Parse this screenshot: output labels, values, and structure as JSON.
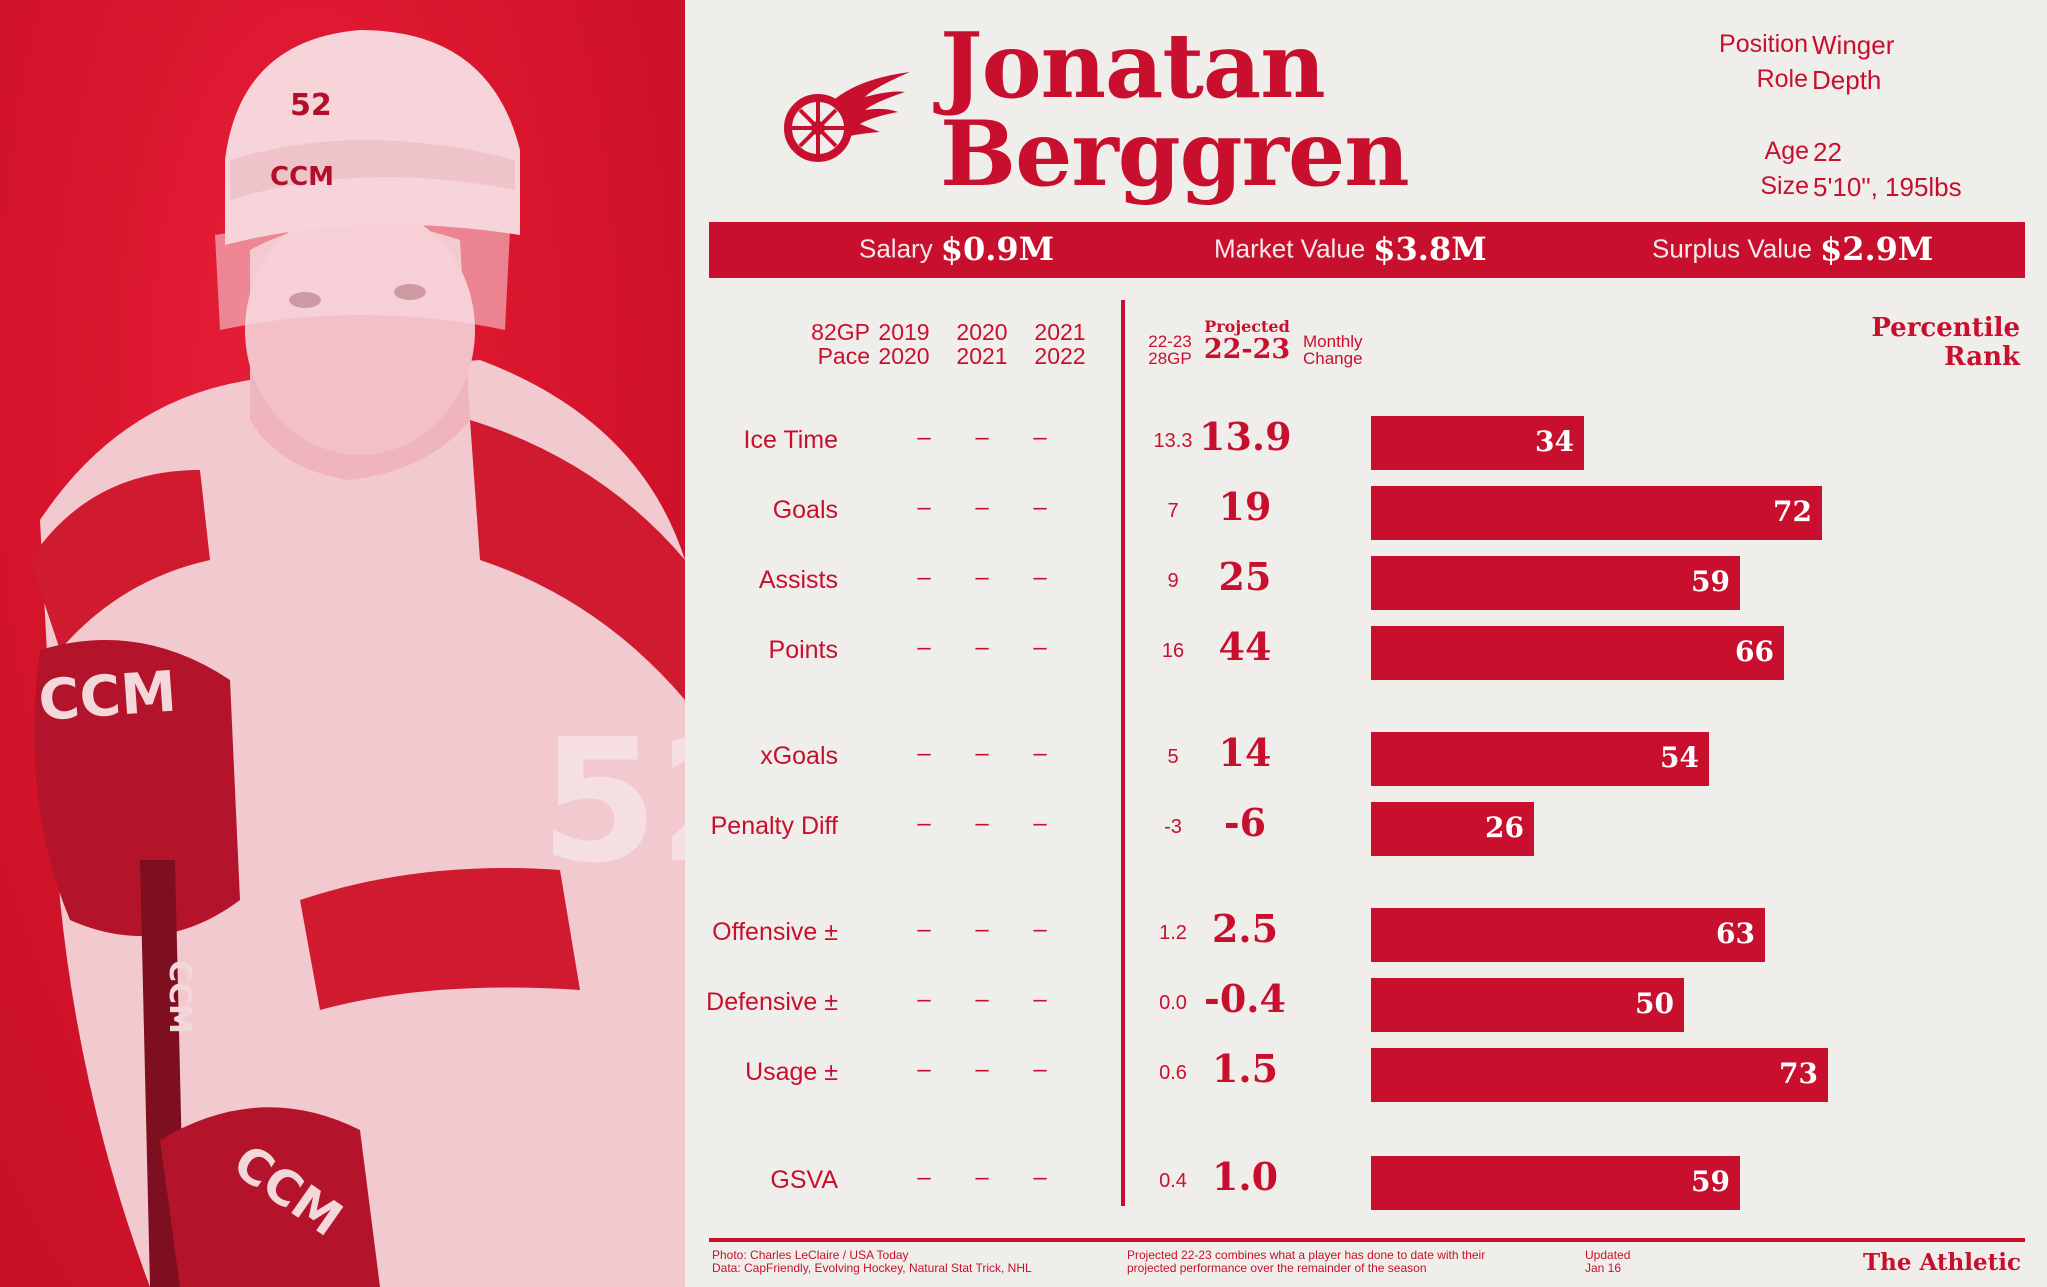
{
  "player": {
    "first_name": "Jonatan",
    "last_name": "Berggren",
    "position_label": "Position",
    "position": "Winger",
    "role_label": "Role",
    "role": "Depth",
    "age_label": "Age",
    "age": "22",
    "size_label": "Size",
    "size": "5'10\", 195lbs",
    "jersey_number": "52"
  },
  "contract": {
    "salary_label": "Salary",
    "salary": "$0.9M",
    "market_label": "Market Value",
    "market": "$3.8M",
    "surplus_label": "Surplus Value",
    "surplus": "$2.9M"
  },
  "headers": {
    "pace_1": "82GP",
    "pace_2": "Pace",
    "s1_a": "2019",
    "s1_b": "2020",
    "s2_a": "2020",
    "s2_b": "2021",
    "s3_a": "2021",
    "s3_b": "2022",
    "gp_a": "22-23",
    "gp_b": "28GP",
    "proj_a": "Projected",
    "proj_b": "22-23",
    "monthly_a": "Monthly",
    "monthly_b": "Change",
    "pct_a": "Percentile",
    "pct_b": "Rank"
  },
  "rows": [
    {
      "label": "Ice Time",
      "s1": "–",
      "s2": "–",
      "s3": "–",
      "current": "13.3",
      "projected": "13.9",
      "percentile": 34
    },
    {
      "label": "Goals",
      "s1": "–",
      "s2": "–",
      "s3": "–",
      "current": "7",
      "projected": "19",
      "percentile": 72
    },
    {
      "label": "Assists",
      "s1": "–",
      "s2": "–",
      "s3": "–",
      "current": "9",
      "projected": "25",
      "percentile": 59
    },
    {
      "label": "Points",
      "s1": "–",
      "s2": "–",
      "s3": "–",
      "current": "16",
      "projected": "44",
      "percentile": 66
    },
    {
      "label": "xGoals",
      "s1": "–",
      "s2": "–",
      "s3": "–",
      "current": "5",
      "projected": "14",
      "percentile": 54
    },
    {
      "label": "Penalty Diff",
      "s1": "–",
      "s2": "–",
      "s3": "–",
      "current": "-3",
      "projected": "-6",
      "percentile": 26
    },
    {
      "label": "Offensive ±",
      "s1": "–",
      "s2": "–",
      "s3": "–",
      "current": "1.2",
      "projected": "2.5",
      "percentile": 63
    },
    {
      "label": "Defensive ±",
      "s1": "–",
      "s2": "–",
      "s3": "–",
      "current": "0.0",
      "projected": "-0.4",
      "percentile": 50
    },
    {
      "label": "Usage ±",
      "s1": "–",
      "s2": "–",
      "s3": "–",
      "current": "0.6",
      "projected": "1.5",
      "percentile": 73
    },
    {
      "label": "GSVA",
      "s1": "–",
      "s2": "–",
      "s3": "–",
      "current": "0.4",
      "projected": "1.0",
      "percentile": 59
    }
  ],
  "footer": {
    "photo_credit": "Photo: Charles LeClaire / USA Today",
    "data_credit": "Data: CapFriendly, Evolving Hockey, Natural Stat Trick, NHL",
    "note_1": "Projected 22-23 combines what a player has done to date with their",
    "note_2": "projected performance over the remainder of the season",
    "updated_label": "Updated",
    "updated_date": "Jan 16",
    "brand": "The Athletic"
  },
  "colors": {
    "accent": "#c8102e",
    "background": "#f0eeea"
  }
}
